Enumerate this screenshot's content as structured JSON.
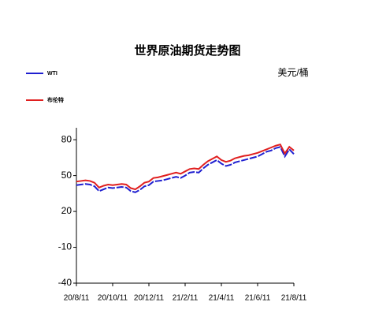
{
  "chart_data": {
    "type": "line",
    "title": "世界原油期货走势图",
    "unit": "美元/桶",
    "categories": [
      "20/8/11",
      null,
      null,
      null,
      null,
      null,
      null,
      null,
      "20/10/11",
      null,
      null,
      null,
      null,
      null,
      null,
      null,
      "20/12/11",
      null,
      null,
      null,
      null,
      null,
      null,
      null,
      "21/2/11",
      null,
      null,
      null,
      null,
      null,
      null,
      null,
      "21/4/11",
      null,
      null,
      null,
      null,
      null,
      null,
      null,
      "21/6/11",
      null,
      null,
      null,
      null,
      null,
      null,
      null,
      "21/8/11"
    ],
    "series": [
      {
        "name": "WTI",
        "color": "#1f1fd0",
        "values": [
          42,
          42.5,
          43,
          42.5,
          41,
          37,
          38.5,
          40,
          39.5,
          40,
          40.5,
          40,
          37,
          36,
          38,
          41,
          42,
          45,
          45.5,
          46,
          47,
          48,
          49,
          48,
          50,
          52.5,
          53,
          52.5,
          56,
          59,
          61,
          63,
          60,
          58,
          59,
          61,
          62,
          63,
          64,
          65,
          66,
          68,
          70,
          71,
          73,
          74,
          66,
          72,
          68
        ]
      },
      {
        "name": "布伦特",
        "color": "#e01f1f",
        "values": [
          45,
          45.5,
          46,
          45.5,
          44,
          40,
          41.5,
          42.5,
          42,
          42.5,
          43,
          42.5,
          39.5,
          38.5,
          41,
          44,
          45,
          48,
          48.5,
          49.5,
          50.5,
          51.5,
          52.5,
          51.5,
          53.5,
          55.5,
          56,
          55.5,
          59,
          62,
          64,
          66,
          63,
          61.5,
          62.5,
          64.5,
          65.5,
          66.5,
          67,
          68,
          69,
          70.5,
          72,
          73.5,
          75,
          76,
          68.5,
          74,
          71
        ]
      }
    ],
    "ylim": [
      -40,
      90
    ],
    "yticks": [
      -40,
      -10,
      20,
      50,
      80
    ],
    "grid": false
  }
}
